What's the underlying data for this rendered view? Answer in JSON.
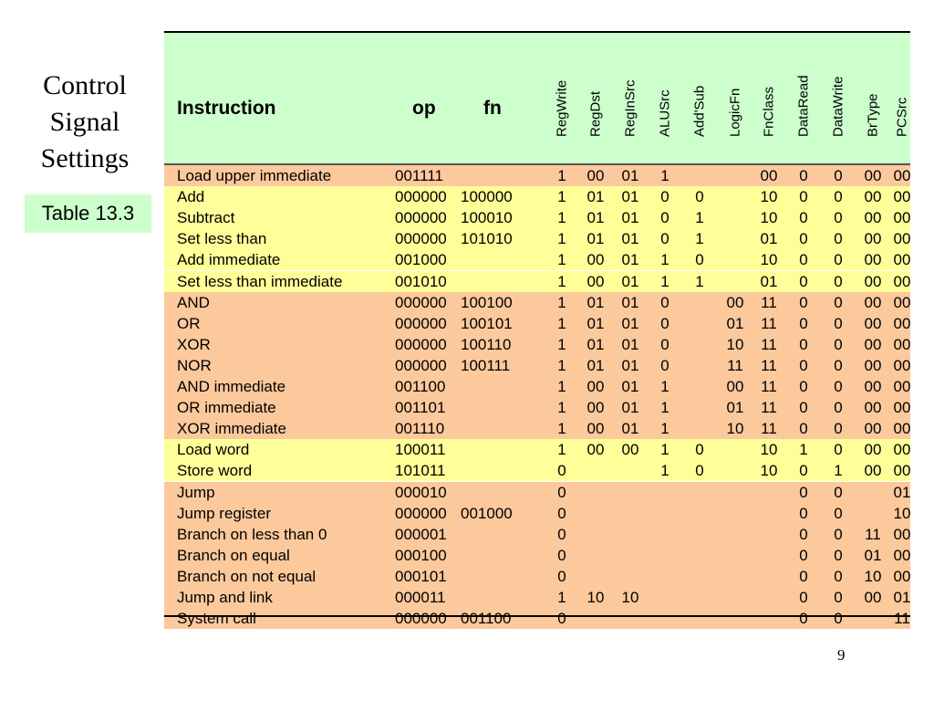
{
  "title_lines": [
    "Control",
    "Signal",
    "Settings"
  ],
  "table_tag": "Table 13.3",
  "page_number": "9",
  "table": {
    "headers": {
      "instruction": "Instruction",
      "op": "op",
      "fn": "fn",
      "signals": [
        "RegWrite",
        "RegDst",
        "RegInSrc",
        "ALUSrc",
        "Add'Sub",
        "LogicFn",
        "FnClass",
        "DataRead",
        "DataWrite",
        "BrType",
        "PCSrc"
      ]
    },
    "rows": [
      {
        "name": "Load upper immediate",
        "op": "001111",
        "fn": "",
        "group": "o",
        "v": [
          "1",
          "00",
          "01",
          "1",
          "",
          "",
          "00",
          "0",
          "0",
          "00",
          "00"
        ]
      },
      {
        "name": "Add",
        "op": "000000",
        "fn": "100000",
        "group": "y",
        "v": [
          "1",
          "01",
          "01",
          "0",
          "0",
          "",
          "10",
          "0",
          "0",
          "00",
          "00"
        ]
      },
      {
        "name": "Subtract",
        "op": "000000",
        "fn": "100010",
        "group": "y",
        "v": [
          "1",
          "01",
          "01",
          "0",
          "1",
          "",
          "10",
          "0",
          "0",
          "00",
          "00"
        ]
      },
      {
        "name": "Set less than",
        "op": "000000",
        "fn": "101010",
        "group": "y",
        "v": [
          "1",
          "01",
          "01",
          "0",
          "1",
          "",
          "01",
          "0",
          "0",
          "00",
          "00"
        ]
      },
      {
        "name": "Add immediate",
        "op": "001000",
        "fn": "",
        "group": "y",
        "v": [
          "1",
          "00",
          "01",
          "1",
          "0",
          "",
          "10",
          "0",
          "0",
          "00",
          "00"
        ]
      },
      {
        "name": "Set less than immediate",
        "op": "001010",
        "fn": "",
        "group": "y",
        "v": [
          "1",
          "00",
          "01",
          "1",
          "1",
          "",
          "01",
          "0",
          "0",
          "00",
          "00"
        ]
      },
      {
        "name": "AND",
        "op": "000000",
        "fn": "100100",
        "group": "o",
        "v": [
          "1",
          "01",
          "01",
          "0",
          "",
          "00",
          "11",
          "0",
          "0",
          "00",
          "00"
        ]
      },
      {
        "name": "OR",
        "op": "000000",
        "fn": "100101",
        "group": "o",
        "v": [
          "1",
          "01",
          "01",
          "0",
          "",
          "01",
          "11",
          "0",
          "0",
          "00",
          "00"
        ]
      },
      {
        "name": "XOR",
        "op": "000000",
        "fn": "100110",
        "group": "o",
        "v": [
          "1",
          "01",
          "01",
          "0",
          "",
          "10",
          "11",
          "0",
          "0",
          "00",
          "00"
        ]
      },
      {
        "name": "NOR",
        "op": "000000",
        "fn": "100111",
        "group": "o",
        "v": [
          "1",
          "01",
          "01",
          "0",
          "",
          "11",
          "11",
          "0",
          "0",
          "00",
          "00"
        ]
      },
      {
        "name": "AND immediate",
        "op": "001100",
        "fn": "",
        "group": "o",
        "v": [
          "1",
          "00",
          "01",
          "1",
          "",
          "00",
          "11",
          "0",
          "0",
          "00",
          "00"
        ]
      },
      {
        "name": "OR immediate",
        "op": "001101",
        "fn": "",
        "group": "o",
        "v": [
          "1",
          "00",
          "01",
          "1",
          "",
          "01",
          "11",
          "0",
          "0",
          "00",
          "00"
        ]
      },
      {
        "name": "XOR immediate",
        "op": "001110",
        "fn": "",
        "group": "o",
        "v": [
          "1",
          "00",
          "01",
          "1",
          "",
          "10",
          "11",
          "0",
          "0",
          "00",
          "00"
        ]
      },
      {
        "name": "Load word",
        "op": "100011",
        "fn": "",
        "group": "y",
        "v": [
          "1",
          "00",
          "00",
          "1",
          "0",
          "",
          "10",
          "1",
          "0",
          "00",
          "00"
        ]
      },
      {
        "name": "Store word",
        "op": "101011",
        "fn": "",
        "group": "y",
        "v": [
          "0",
          "",
          "",
          "1",
          "0",
          "",
          "10",
          "0",
          "1",
          "00",
          "00"
        ]
      },
      {
        "name": "Jump",
        "op": "000010",
        "fn": "",
        "group": "o",
        "v": [
          "0",
          "",
          "",
          "",
          "",
          "",
          "",
          "0",
          "0",
          "",
          "01"
        ]
      },
      {
        "name": "Jump register",
        "op": "000000",
        "fn": "001000",
        "group": "o",
        "v": [
          "0",
          "",
          "",
          "",
          "",
          "",
          "",
          "0",
          "0",
          "",
          "10"
        ]
      },
      {
        "name": "Branch on less than 0",
        "op": "000001",
        "fn": "",
        "group": "o",
        "v": [
          "0",
          "",
          "",
          "",
          "",
          "",
          "",
          "0",
          "0",
          "11",
          "00"
        ]
      },
      {
        "name": "Branch on equal",
        "op": "000100",
        "fn": "",
        "group": "o",
        "v": [
          "0",
          "",
          "",
          "",
          "",
          "",
          "",
          "0",
          "0",
          "01",
          "00"
        ]
      },
      {
        "name": "Branch on not equal",
        "op": "000101",
        "fn": "",
        "group": "o",
        "v": [
          "0",
          "",
          "",
          "",
          "",
          "",
          "",
          "0",
          "0",
          "10",
          "00"
        ]
      },
      {
        "name": "Jump and link",
        "op": "000011",
        "fn": "",
        "group": "o",
        "v": [
          "1",
          "10",
          "10",
          "",
          "",
          "",
          "",
          "0",
          "0",
          "00",
          "01"
        ]
      },
      {
        "name": "System call",
        "op": "000000",
        "fn": "001100",
        "group": "o",
        "v": [
          "0",
          "",
          "",
          "",
          "",
          "",
          "",
          "0",
          "0",
          "",
          "11"
        ]
      }
    ]
  }
}
